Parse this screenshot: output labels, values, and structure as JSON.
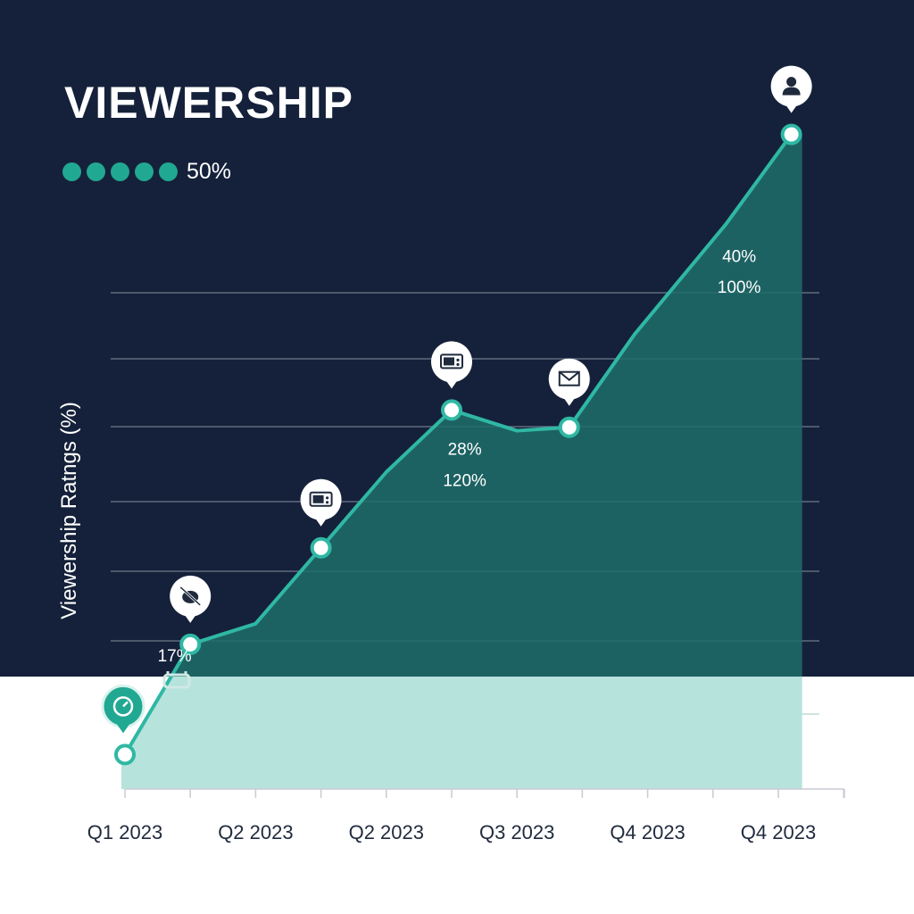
{
  "colors": {
    "background_dark": "#15213a",
    "accent": "#21a893",
    "line": "#2fb8a4",
    "area_dark": "#1e6d6b",
    "area_light": "#b6e3dc",
    "grid": "#8d97a8",
    "text_light": "#ffffff",
    "text_dark": "#1f2a3d"
  },
  "title": "VIEWERSHIP",
  "legend": {
    "label": "50%",
    "dot_count": 5,
    "dot_color": "#21a893"
  },
  "chart_data": {
    "type": "area",
    "title": "VIEWERSHIP",
    "xlabel": "",
    "ylabel": "Viewership Ratngs (%)",
    "categories": [
      "Q1 2023",
      "Q2 2023",
      "Q2 2023",
      "Q3 2023",
      "Q4 2023",
      "Q4 2023"
    ],
    "x": [
      0,
      0.5,
      1,
      1.5,
      2,
      2.5,
      3,
      3.4,
      3.9,
      4.6,
      5.1
    ],
    "values": [
      5,
      21,
      24,
      35,
      46,
      55,
      52,
      52.5,
      66,
      82,
      95
    ],
    "ylim": [
      0,
      100
    ],
    "grid": true,
    "markers": [
      {
        "index": 0,
        "icon": "gauge-icon",
        "highlight": true
      },
      {
        "index": 1,
        "icon": "satellite-off-icon"
      },
      {
        "index": 3,
        "icon": "microwave-icon"
      },
      {
        "index": 5,
        "icon": "radio-icon"
      },
      {
        "index": 7,
        "icon": "envelope-icon"
      },
      {
        "index": 10,
        "icon": "person-icon"
      }
    ],
    "annotations": [
      {
        "text": "17%",
        "x": 0.38,
        "y": 18.5
      },
      {
        "text": "28%",
        "x": 2.6,
        "y": 48.5
      },
      {
        "text": "120%",
        "x": 2.6,
        "y": 44
      },
      {
        "text": "40%",
        "x": 4.7,
        "y": 76.5
      },
      {
        "text": "100%",
        "x": 4.7,
        "y": 72
      }
    ]
  }
}
